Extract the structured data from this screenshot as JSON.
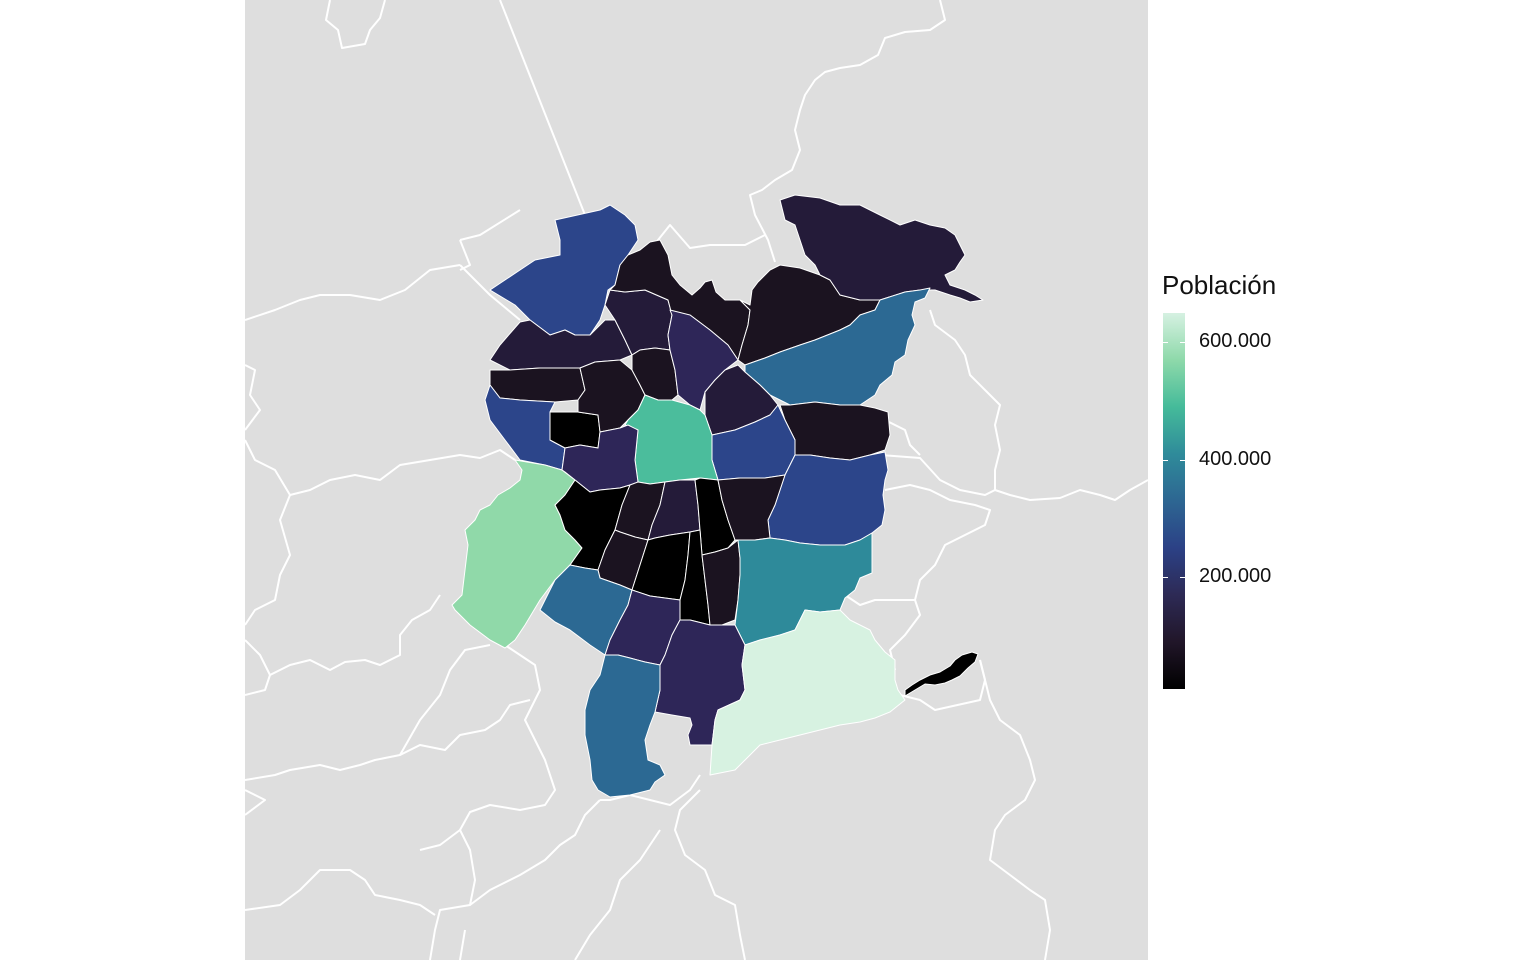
{
  "legend": {
    "title": "Población",
    "ticks": [
      {
        "label": "600.000",
        "value": 600000
      },
      {
        "label": "400.000",
        "value": 400000
      },
      {
        "label": "200.000",
        "value": 200000
      }
    ],
    "min": 10000,
    "max": 650000,
    "gradient_colors": [
      "#000000",
      "#211629",
      "#2d2a55",
      "#2c4186",
      "#2d6692",
      "#2f8b9a",
      "#45bb9a",
      "#8ed9aa",
      "#d6f1e2"
    ]
  },
  "map_style": {
    "background": "#dedede",
    "border_color": "#ffffff",
    "region_colors": {
      "v_black": "#000000",
      "v_very_dark": "#1b1320",
      "v_dark": "#241b39",
      "v_indigo": "#2e2658",
      "v_blue": "#2c458a",
      "v_steel": "#2c6993",
      "v_teal": "#2e8a9a",
      "v_mint": "#4bbd9c",
      "v_light_green": "#90d9a9",
      "v_palest": "#d7f2e1"
    }
  }
}
